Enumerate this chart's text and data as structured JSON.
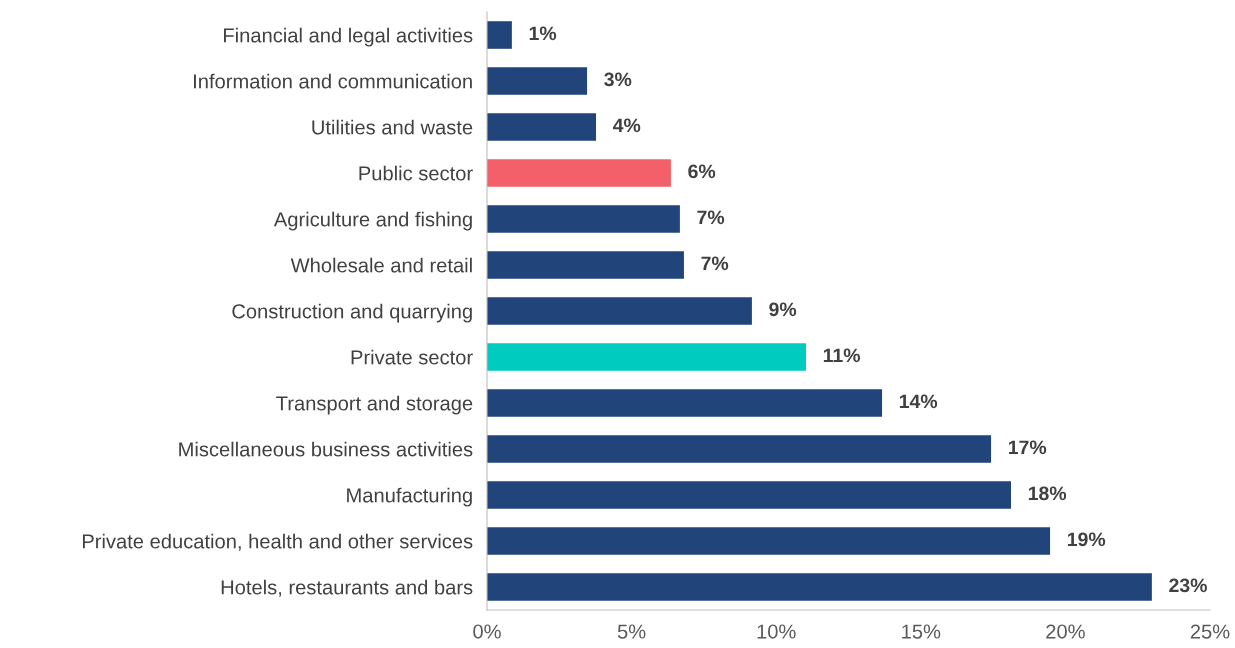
{
  "chart_data": {
    "type": "bar",
    "orientation": "horizontal",
    "categories": [
      "Financial and legal activities",
      "Information and communication",
      "Utilities and waste",
      "Public sector",
      "Agriculture and fishing",
      "Wholesale and retail",
      "Construction and quarrying",
      "Private sector",
      "Transport and storage",
      "Miscellaneous business activities",
      "Manufacturing",
      "Private education, health and other services",
      "Hotels, restaurants and bars"
    ],
    "values": [
      0.86,
      3.46,
      3.77,
      6.36,
      6.67,
      6.81,
      9.16,
      11.03,
      13.66,
      17.43,
      18.12,
      19.47,
      22.99
    ],
    "colors": [
      "#21457a",
      "#21457a",
      "#21457a",
      "#f4606a",
      "#21457a",
      "#21457a",
      "#21457a",
      "#00cbbf",
      "#21457a",
      "#21457a",
      "#21457a",
      "#21457a",
      "#21457a"
    ],
    "value_labels": [
      "1%",
      "3%",
      "4%",
      "6%",
      "7%",
      "7%",
      "9%",
      "11%",
      "14%",
      "17%",
      "18%",
      "19%",
      "23%"
    ],
    "xlim": [
      0,
      25
    ],
    "xticks": [
      {
        "value": 0,
        "label": "0%"
      },
      {
        "value": 5,
        "label": "5%"
      },
      {
        "value": 10,
        "label": "10%"
      },
      {
        "value": 15,
        "label": "15%"
      },
      {
        "value": 20,
        "label": "20%"
      },
      {
        "value": 25,
        "label": "25%"
      }
    ],
    "grid": false,
    "legend": false
  }
}
